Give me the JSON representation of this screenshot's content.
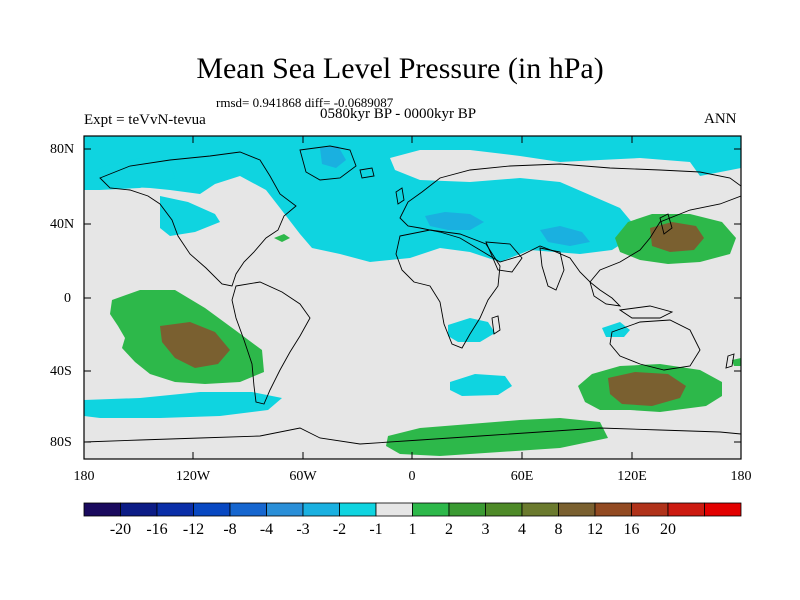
{
  "title": "Mean Sea Level Pressure (in hPa)",
  "stats": "rmsd= 0.941868 diff= -0.0689087",
  "experiment": "Expt = teVvN-tevua",
  "period": "0580kyr BP - 0000kyr BP",
  "season": "ANN",
  "colors": {
    "land_neutral": "#e6e6e6",
    "minus_1_2": "#0fd4e0",
    "minus_2_3": "#1ab0e0",
    "minus_3_4": "#2a8fd8",
    "plus_1_2": "#2db84a",
    "plus_2_3": "#4e9a2a",
    "plus_3_4": "#6b7a2e",
    "plus_4_8": "#7a6030"
  },
  "map": {
    "lat_labels": [
      "80N",
      "40N",
      "0",
      "40S",
      "80S"
    ],
    "lon_labels": [
      "180",
      "120W",
      "60W",
      "0",
      "60E",
      "120E",
      "180"
    ]
  },
  "colorbar": {
    "colors": [
      "#1a0a5e",
      "#0c1c86",
      "#0a2ea8",
      "#0848c2",
      "#1666cf",
      "#2a8fd8",
      "#1ab0e0",
      "#0fd4e0",
      "#e6e6e6",
      "#2db84a",
      "#3a9a32",
      "#4e8a28",
      "#6b7a2e",
      "#7a6030",
      "#924a22",
      "#b0321a",
      "#cc1a10",
      "#e20000"
    ],
    "labels": [
      "-20",
      "-16",
      "-12",
      "-8",
      "-4",
      "-3",
      "-2",
      "-1",
      "1",
      "2",
      "3",
      "4",
      "8",
      "12",
      "16",
      "20"
    ]
  }
}
